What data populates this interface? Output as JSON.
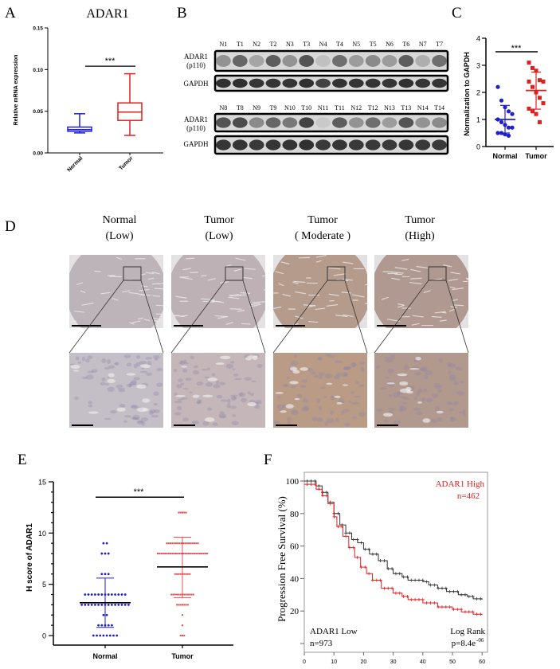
{
  "panel_labels": {
    "a": "A",
    "b": "B",
    "c": "C",
    "d": "D",
    "e": "E",
    "f": "F"
  },
  "chart_data": [
    {
      "panel": "A",
      "type": "box",
      "title": "ADAR1",
      "ylabel": "Relative mRNA expression",
      "ylim": [
        0,
        0.15
      ],
      "yticks": [
        "0.00",
        "0.05",
        "0.10",
        "0.15"
      ],
      "categories": [
        "Normal",
        "Tumor"
      ],
      "colors": [
        "#1f1fd0",
        "#e01f1f"
      ],
      "boxes": [
        {
          "min": 0.024,
          "q1": 0.026,
          "median": 0.028,
          "q3": 0.031,
          "max": 0.047
        },
        {
          "min": 0.021,
          "q1": 0.039,
          "median": 0.049,
          "q3": 0.06,
          "max": 0.095
        }
      ],
      "significance": "***"
    },
    {
      "panel": "B",
      "type": "western_blot",
      "row_labels": {
        "adar1": [
          "ADAR1",
          "(p110)"
        ],
        "gapdh": "GAPDH"
      },
      "blots": [
        {
          "lanes": [
            "N1",
            "T1",
            "N2",
            "T2",
            "N3",
            "T3",
            "N4",
            "T4",
            "N5",
            "T5",
            "N6",
            "T6",
            "N7",
            "T7"
          ],
          "adar1_intensity": [
            0.4,
            0.65,
            0.3,
            0.7,
            0.4,
            0.75,
            0.15,
            0.6,
            0.35,
            0.45,
            0.35,
            0.7,
            0.25,
            0.6
          ],
          "gapdh_intensity": [
            0.95,
            0.95,
            0.92,
            0.92,
            0.93,
            0.95,
            0.85,
            0.93,
            0.93,
            0.93,
            0.92,
            0.95,
            0.93,
            0.93
          ]
        },
        {
          "lanes": [
            "N8",
            "T8",
            "N9",
            "T9",
            "N10",
            "T10",
            "N11",
            "T11",
            "N12",
            "T12",
            "N13",
            "T13",
            "N14",
            "T14"
          ],
          "adar1_intensity": [
            0.75,
            0.8,
            0.45,
            0.65,
            0.55,
            0.85,
            0.1,
            0.7,
            0.4,
            0.6,
            0.35,
            0.75,
            0.4,
            0.45
          ],
          "gapdh_intensity": [
            0.92,
            0.92,
            0.9,
            0.92,
            0.93,
            0.95,
            0.9,
            0.92,
            0.9,
            0.9,
            0.9,
            0.92,
            0.9,
            0.9
          ]
        }
      ]
    },
    {
      "panel": "C",
      "type": "scatter",
      "ylabel": "Normalization to GAPDH",
      "ylim": [
        0,
        4
      ],
      "yticks": [
        "0",
        "1",
        "2",
        "3",
        "4"
      ],
      "categories": [
        "Normal",
        "Tumor"
      ],
      "colors": [
        "#1f1fd0",
        "#e01f1f"
      ],
      "series": [
        {
          "values": [
            2.2,
            1.7,
            1.45,
            1.3,
            1.2,
            1.0,
            0.9,
            0.8,
            0.7,
            0.7,
            0.5,
            0.5,
            0.45,
            0.4
          ],
          "mean": 1.0,
          "sd_low": 0.5,
          "sd_high": 1.52
        },
        {
          "values": [
            3.1,
            2.9,
            2.8,
            2.45,
            2.4,
            2.4,
            2.2,
            2.0,
            1.8,
            1.6,
            1.4,
            1.3,
            1.2,
            0.9
          ],
          "mean": 2.07,
          "sd_low": 1.38,
          "sd_high": 2.75
        }
      ],
      "significance": "***"
    },
    {
      "panel": "E",
      "type": "scatter",
      "ylabel": "H score of ADAR1",
      "ylim": [
        0,
        15
      ],
      "yticks": [
        "0",
        "5",
        "10",
        "15"
      ],
      "categories": [
        "Normal",
        "Tumor"
      ],
      "colors": [
        "#1f1fd0",
        "#e05050"
      ],
      "series": [
        {
          "counts": {
            "0": 8,
            "1": 5,
            "2": 2,
            "3": 15,
            "4": 13,
            "6": 3,
            "8": 3,
            "9": 2
          },
          "mean": 3.2,
          "sd_low": 0.8,
          "sd_high": 5.6
        },
        {
          "counts": {
            "0": 3,
            "1": 1,
            "2": 1,
            "3": 7,
            "4": 13,
            "6": 9,
            "8": 28,
            "9": 18,
            "12": 5
          },
          "mean": 6.7,
          "sd_low": 3.7,
          "sd_high": 9.6
        }
      ],
      "significance": "***"
    },
    {
      "panel": "F",
      "type": "line",
      "ylabel": "Progression  Free Survival (%)",
      "xlim": [
        0,
        60
      ],
      "ylim": [
        0,
        105
      ],
      "xticks": [
        "0",
        "10",
        "20",
        "30",
        "40",
        "50",
        "60"
      ],
      "yticks": [
        "20",
        "40",
        "60",
        "80",
        "100"
      ],
      "series": [
        {
          "name": "ADAR1 Low",
          "n": "n=973",
          "color": "#333333",
          "x": [
            0,
            4,
            6,
            8,
            10,
            12,
            14,
            16,
            18,
            20,
            22,
            25,
            28,
            30,
            33,
            35,
            40,
            42,
            45,
            48,
            52,
            55,
            57,
            60
          ],
          "y": [
            100,
            97,
            93,
            87,
            80,
            73,
            68,
            64,
            62,
            58,
            55,
            51,
            46,
            43,
            41,
            39,
            38,
            36,
            34,
            32,
            30,
            29,
            27.5,
            27
          ]
        },
        {
          "name": "ADAR1 High",
          "n": "n=462",
          "color": "#e02020",
          "x": [
            0,
            4,
            6,
            8,
            10,
            11,
            13,
            15,
            17,
            19,
            21,
            23,
            26,
            30,
            33,
            35,
            40,
            45,
            50,
            53,
            57,
            60
          ],
          "y": [
            98,
            95,
            91,
            86,
            78,
            72,
            66,
            59,
            53,
            47,
            43,
            39,
            34,
            31,
            29,
            27,
            25,
            22.5,
            21,
            19.5,
            18,
            17.5
          ]
        }
      ],
      "annotations": {
        "test": "Log Rank",
        "p": "p=8.4e",
        "p_exp": "-06"
      }
    }
  ],
  "ihc": {
    "columns": [
      {
        "title": "Normal",
        "level": "(Low)",
        "color": "#bcb4b9",
        "zoom_color": "#c4bfc6"
      },
      {
        "title": "Tumor",
        "level": "(Low)",
        "color": "#bdb1b5",
        "zoom_color": "#c5b7b9"
      },
      {
        "title": "Tumor",
        "level": "( Moderate )",
        "color": "#b49b8c",
        "zoom_color": "#b99b86"
      },
      {
        "title": "Tumor",
        "level": "(High)",
        "color": "#b09990",
        "zoom_color": "#b2998d"
      }
    ]
  }
}
